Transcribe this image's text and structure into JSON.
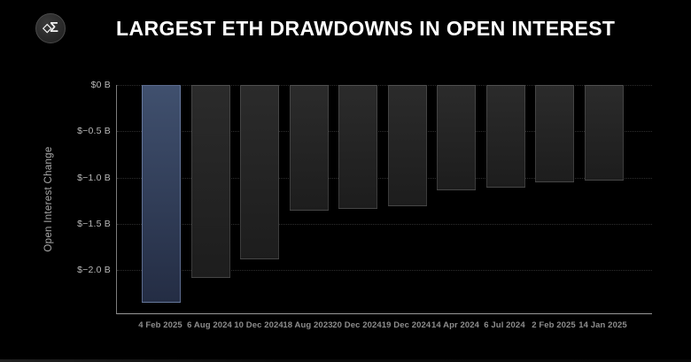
{
  "header": {
    "logo_icon": "sigma-logo-icon",
    "title": "LARGEST ETH DRAWDOWNS IN OPEN INTEREST"
  },
  "chart_data": {
    "type": "bar",
    "title": "LARGEST ETH DRAWDOWNS IN OPEN INTEREST",
    "xlabel": "",
    "ylabel": "Open Interest Change",
    "unit": "billions USD",
    "categories": [
      "4 Feb 2025",
      "6 Aug 2024",
      "10 Dec 2024",
      "18 Aug 2023",
      "20 Dec 2024",
      "19 Dec 2024",
      "14 Apr 2024",
      "6 Jul 2024",
      "2 Feb 2025",
      "14 Jan 2025"
    ],
    "values": [
      -2.35,
      -2.08,
      -1.88,
      -1.36,
      -1.34,
      -1.31,
      -1.14,
      -1.11,
      -1.05,
      -1.03
    ],
    "yticks": [
      {
        "value": 0,
        "label": "$0 B"
      },
      {
        "value": -0.5,
        "label": "$−0.5 B"
      },
      {
        "value": -1.0,
        "label": "$−1.0 B"
      },
      {
        "value": -1.5,
        "label": "$−1.5 B"
      },
      {
        "value": -2.0,
        "label": "$−2.0 B"
      }
    ],
    "ylim": [
      -2.47,
      0
    ],
    "grid": "horizontal-dotted",
    "legend": "none",
    "highlight_index": 0,
    "colors": {
      "background": "#000000",
      "title": "#ffffff",
      "bar_top": "#2b2b2b",
      "bar_bottom": "#1d1d1d",
      "highlight_bar_top": "#40506e",
      "highlight_bar_bottom": "#242d44",
      "grid": "#2e2e2e",
      "axis": "#8c8c8c",
      "tick_label": "#b8b8b8",
      "x_label": "#8d8d8d"
    }
  }
}
